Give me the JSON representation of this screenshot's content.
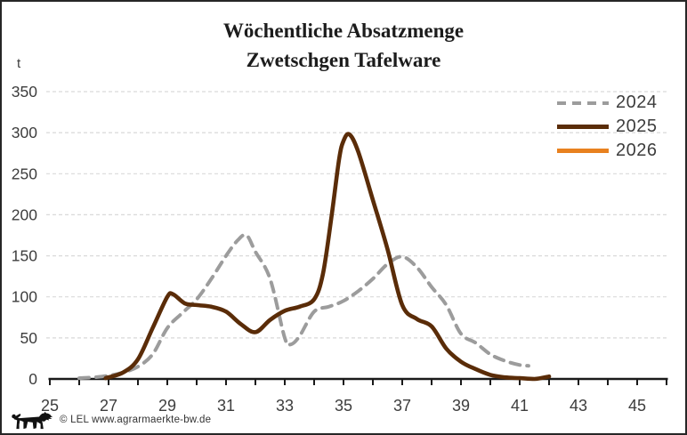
{
  "title": {
    "line1": "Wöchentliche Absatzmenge",
    "line2": "Zwetschgen Tafelware"
  },
  "footer": {
    "credit": "© LEL www.agrarmaerkte-bw.de",
    "logo_icon": "bw-lion-logo"
  },
  "colors": {
    "background": "#ffffff",
    "frame_border": "#262626",
    "gridline": "#d9d9d9",
    "axis": "#1a1a1a",
    "tick_text": "#3d3d3d",
    "title_text": "#1c1c1c",
    "logo": "#111111"
  },
  "chart_data": {
    "type": "line",
    "title": "Wöchentliche Absatzmenge Zwetschgen Tafelware",
    "xlabel": "",
    "ylabel": "t",
    "xlim": [
      25,
      46
    ],
    "ylim": [
      0,
      350
    ],
    "grid": "horizontal-dashed",
    "legend_position": "top-right",
    "y_ticks": [
      0,
      50,
      100,
      150,
      200,
      250,
      300,
      350
    ],
    "x_tick_marks_from": 25,
    "x_tick_marks_to": 46,
    "x_tick_labels": [
      25,
      27,
      29,
      31,
      33,
      35,
      37,
      39,
      41,
      43,
      45
    ],
    "series": [
      {
        "name": "2024",
        "color": "#9c9c9c",
        "style": "dashed",
        "points": [
          [
            26,
            1
          ],
          [
            26.5,
            2
          ],
          [
            27,
            4
          ],
          [
            27.5,
            8
          ],
          [
            28,
            15
          ],
          [
            28.5,
            30
          ],
          [
            29,
            62
          ],
          [
            29.5,
            80
          ],
          [
            30,
            97
          ],
          [
            30.5,
            122
          ],
          [
            31,
            150
          ],
          [
            31.4,
            169
          ],
          [
            31.7,
            175
          ],
          [
            32,
            155
          ],
          [
            32.5,
            122
          ],
          [
            33,
            50
          ],
          [
            33.2,
            42
          ],
          [
            33.5,
            52
          ],
          [
            34,
            82
          ],
          [
            34.5,
            88
          ],
          [
            35,
            95
          ],
          [
            35.5,
            107
          ],
          [
            36,
            122
          ],
          [
            36.5,
            140
          ],
          [
            37,
            149
          ],
          [
            37.5,
            136
          ],
          [
            38,
            112
          ],
          [
            38.5,
            90
          ],
          [
            39,
            55
          ],
          [
            39.5,
            44
          ],
          [
            40,
            30
          ],
          [
            40.5,
            22
          ],
          [
            41,
            17
          ],
          [
            41.3,
            16
          ]
        ]
      },
      {
        "name": "2025",
        "color": "#5a2c08",
        "style": "solid",
        "points": [
          [
            26.9,
            1
          ],
          [
            27.5,
            8
          ],
          [
            28,
            24
          ],
          [
            28.5,
            62
          ],
          [
            29,
            100
          ],
          [
            29.2,
            103
          ],
          [
            29.6,
            92
          ],
          [
            30,
            90
          ],
          [
            30.5,
            88
          ],
          [
            31,
            82
          ],
          [
            31.5,
            67
          ],
          [
            32,
            57
          ],
          [
            32.5,
            72
          ],
          [
            33,
            83
          ],
          [
            33.5,
            88
          ],
          [
            34,
            97
          ],
          [
            34.3,
            128
          ],
          [
            34.6,
            200
          ],
          [
            34.85,
            268
          ],
          [
            35,
            290
          ],
          [
            35.2,
            298
          ],
          [
            35.5,
            277
          ],
          [
            36,
            218
          ],
          [
            36.5,
            158
          ],
          [
            37,
            90
          ],
          [
            37.5,
            73
          ],
          [
            38,
            64
          ],
          [
            38.5,
            37
          ],
          [
            39,
            21
          ],
          [
            39.5,
            12
          ],
          [
            40,
            5
          ],
          [
            40.5,
            2
          ],
          [
            41,
            1
          ],
          [
            41.5,
            0
          ],
          [
            42,
            3
          ]
        ]
      },
      {
        "name": "2026",
        "color": "#e8811f",
        "style": "solid",
        "points": []
      }
    ]
  }
}
